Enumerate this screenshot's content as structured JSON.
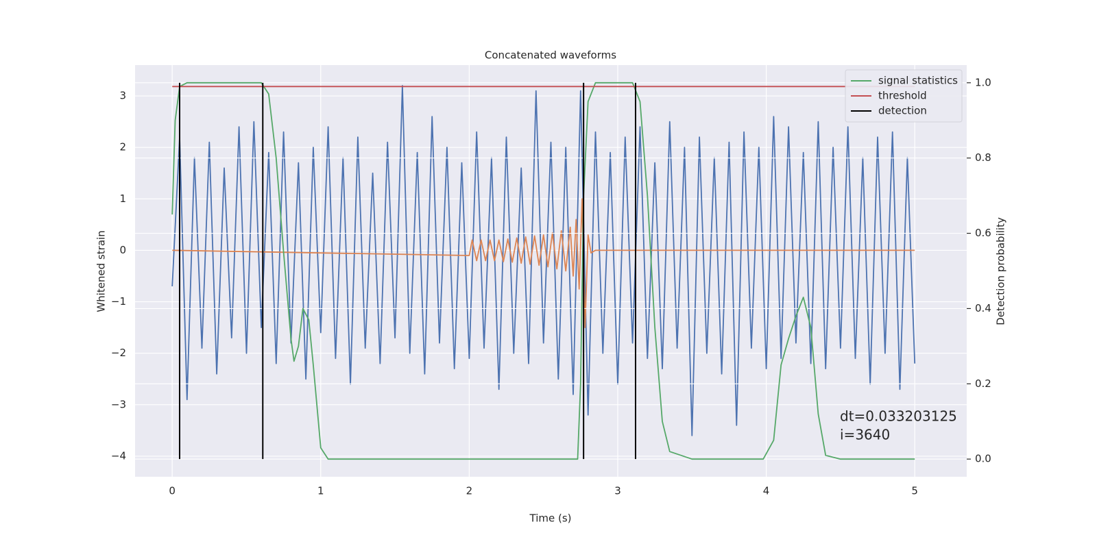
{
  "chart_data": {
    "type": "line",
    "title": "Concatenated waveforms",
    "xlabel": "Time (s)",
    "ylabel": "Whitened strain",
    "y2label": "Detection probability",
    "xlim": [
      -0.25,
      5.35
    ],
    "ylim": [
      -4.4,
      3.6
    ],
    "y2lim": [
      -0.047,
      1.047
    ],
    "xticks": [
      0,
      1,
      2,
      3,
      4,
      5
    ],
    "yticks": [
      {
        "value": -4,
        "label": "−4"
      },
      {
        "value": -3,
        "label": "−3"
      },
      {
        "value": -2,
        "label": "−2"
      },
      {
        "value": -1,
        "label": "−1"
      },
      0,
      1,
      2,
      3
    ],
    "y2ticks": [
      {
        "value": 0,
        "label": "0.0"
      },
      0.2,
      0.4,
      0.6,
      0.8,
      {
        "value": 1,
        "label": "1.0"
      }
    ],
    "grid": true,
    "legend": "upper right",
    "background": "#eaeaf2",
    "annotation": [
      "dt=0.033203125",
      " i=3640"
    ],
    "series": [
      {
        "color": "#4c72b0",
        "axis": "y",
        "x": [
          0,
          0.05,
          0.1,
          0.15,
          0.2,
          0.25,
          0.3,
          0.35,
          0.4,
          0.45,
          0.5,
          0.55,
          0.6,
          0.65,
          0.7,
          0.75,
          0.8,
          0.85,
          0.9,
          0.95,
          1.0,
          1.05,
          1.1,
          1.15,
          1.2,
          1.25,
          1.3,
          1.35,
          1.4,
          1.45,
          1.5,
          1.55,
          1.6,
          1.65,
          1.7,
          1.75,
          1.8,
          1.85,
          1.9,
          1.95,
          2.0,
          2.05,
          2.1,
          2.15,
          2.2,
          2.25,
          2.3,
          2.35,
          2.4,
          2.45,
          2.5,
          2.55,
          2.6,
          2.65,
          2.7,
          2.75,
          2.8,
          2.85,
          2.9,
          2.95,
          3.0,
          3.05,
          3.1,
          3.15,
          3.2,
          3.25,
          3.3,
          3.35,
          3.4,
          3.45,
          3.5,
          3.55,
          3.6,
          3.65,
          3.7,
          3.75,
          3.8,
          3.85,
          3.9,
          3.95,
          4.0,
          4.05,
          4.1,
          4.15,
          4.2,
          4.25,
          4.3,
          4.35,
          4.4,
          4.45,
          4.5,
          4.55,
          4.6,
          4.65,
          4.7,
          4.75,
          4.8,
          4.85,
          4.9,
          4.95,
          5.0
        ],
        "values": [
          -0.7,
          2.2,
          -2.9,
          1.8,
          -1.9,
          2.1,
          -2.4,
          1.6,
          -1.7,
          2.4,
          -2.0,
          2.5,
          -1.5,
          1.9,
          -2.2,
          2.3,
          -1.8,
          1.7,
          -2.5,
          2.0,
          -1.6,
          2.4,
          -2.1,
          1.8,
          -2.6,
          2.2,
          -1.9,
          1.5,
          -2.2,
          2.1,
          -1.7,
          3.2,
          -2.0,
          1.9,
          -2.4,
          2.6,
          -1.8,
          2.0,
          -2.3,
          1.7,
          -2.1,
          2.3,
          -1.9,
          1.8,
          -2.7,
          2.2,
          -2.0,
          1.6,
          -2.2,
          3.1,
          -1.8,
          2.1,
          -2.5,
          2.0,
          -2.8,
          3.1,
          -3.2,
          2.3,
          -2.0,
          1.9,
          -2.6,
          2.2,
          -1.8,
          2.4,
          -2.1,
          1.7,
          -2.3,
          2.5,
          -1.9,
          2.0,
          -3.6,
          2.2,
          -2.0,
          1.8,
          -2.4,
          2.1,
          -3.4,
          2.3,
          -1.9,
          2.0,
          -2.3,
          2.6,
          -2.1,
          2.4,
          -1.8,
          1.9,
          -2.2,
          2.5,
          -2.3,
          2.0,
          -1.9,
          2.4,
          -2.1,
          1.8,
          -2.6,
          2.2,
          -2.0,
          2.3,
          -2.7,
          1.8,
          -2.2
        ]
      },
      {
        "color": "#dd8452",
        "axis": "y",
        "x": [
          0,
          2.0,
          2.02,
          2.05,
          2.08,
          2.11,
          2.14,
          2.17,
          2.2,
          2.23,
          2.26,
          2.29,
          2.32,
          2.35,
          2.38,
          2.41,
          2.44,
          2.47,
          2.5,
          2.53,
          2.56,
          2.59,
          2.62,
          2.65,
          2.68,
          2.7,
          2.72,
          2.74,
          2.76,
          2.78,
          2.8,
          2.82,
          2.85,
          5
        ],
        "values": [
          0,
          -0.1,
          0.2,
          -0.2,
          0.2,
          -0.2,
          0.2,
          -0.2,
          0.2,
          -0.22,
          0.22,
          -0.23,
          0.24,
          -0.25,
          0.26,
          -0.27,
          0.28,
          -0.29,
          0.3,
          -0.32,
          0.34,
          -0.36,
          0.38,
          -0.4,
          0.45,
          -0.5,
          0.6,
          -0.75,
          1.0,
          -1.5,
          0.3,
          -0.05,
          0,
          0
        ]
      },
      {
        "name": "signal statistics",
        "color": "#55a868",
        "axis": "y2",
        "x": [
          0,
          0.02,
          0.05,
          0.1,
          0.6,
          0.65,
          0.7,
          0.75,
          0.8,
          0.82,
          0.85,
          0.88,
          0.92,
          0.95,
          1.0,
          1.05,
          2.73,
          2.75,
          2.77,
          2.8,
          2.85,
          3.1,
          3.15,
          3.2,
          3.25,
          3.3,
          3.35,
          3.5,
          3.98,
          4.05,
          4.1,
          4.15,
          4.2,
          4.25,
          4.3,
          4.35,
          4.4,
          4.5,
          5
        ],
        "values": [
          0.65,
          0.9,
          0.99,
          1.0,
          1.0,
          0.97,
          0.8,
          0.55,
          0.32,
          0.26,
          0.3,
          0.4,
          0.37,
          0.25,
          0.03,
          0.0,
          0.0,
          0.2,
          0.7,
          0.95,
          1.0,
          1.0,
          0.95,
          0.7,
          0.35,
          0.1,
          0.02,
          0.0,
          0.0,
          0.05,
          0.25,
          0.32,
          0.38,
          0.43,
          0.35,
          0.12,
          0.01,
          0.0,
          0.0
        ]
      },
      {
        "name": "threshold",
        "color": "#c44e52",
        "axis": "y2",
        "x": [
          0,
          5
        ],
        "values": [
          0.99,
          0.99
        ]
      },
      {
        "name": "detection",
        "color": "#000000",
        "axis": "y2",
        "kind": "vline",
        "x": [
          0.05,
          0.61,
          2.77,
          3.12
        ],
        "span": [
          0,
          1
        ]
      }
    ]
  }
}
